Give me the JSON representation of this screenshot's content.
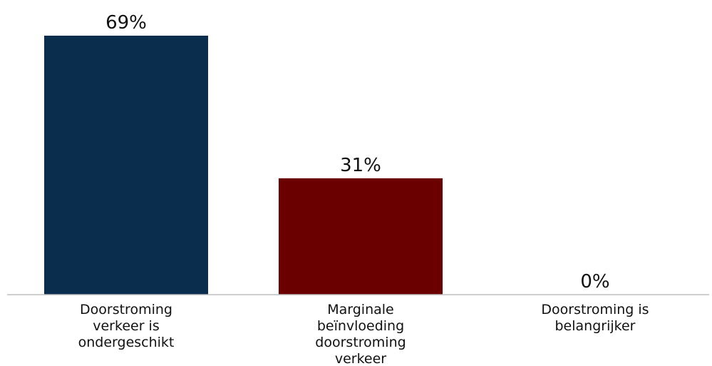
{
  "chart_data": {
    "type": "bar",
    "categories": [
      "Doorstroming verkeer is ondergeschikt",
      "Marginale beïnvloeding doorstroming verkeer",
      "Doorstroming is belangrijker"
    ],
    "category_lines": [
      [
        "Doorstroming",
        "verkeer is",
        "ondergeschikt"
      ],
      [
        "Marginale",
        "beïnvloeding",
        "doorstroming",
        "verkeer"
      ],
      [
        "Doorstroming is",
        "belangrijker"
      ]
    ],
    "values": [
      69,
      31,
      0
    ],
    "value_labels": [
      "69%",
      "31%",
      "0%"
    ],
    "colors": [
      "#0a2d4e",
      "#6b0000",
      "#6b0000"
    ],
    "ylim": [
      0,
      69
    ],
    "grid": false,
    "legend": "none"
  }
}
